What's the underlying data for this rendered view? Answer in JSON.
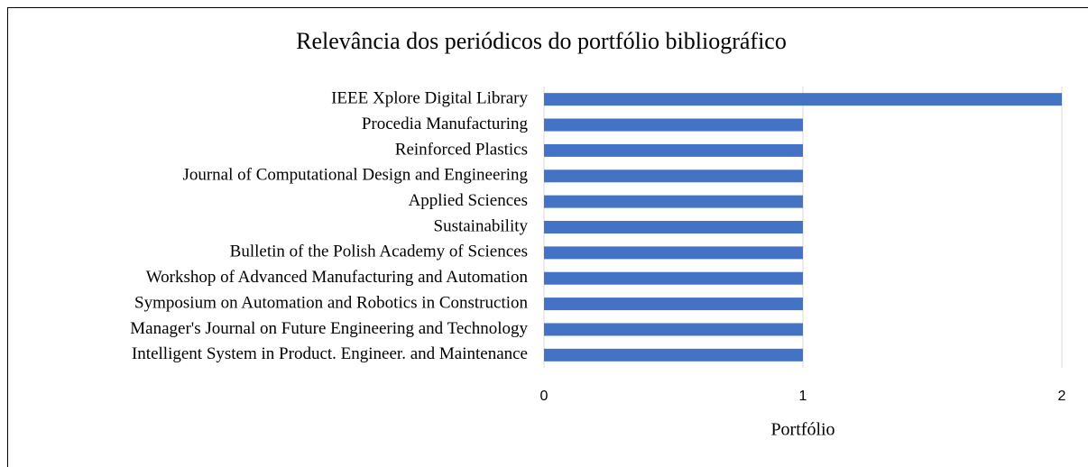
{
  "chart_data": {
    "type": "bar",
    "orientation": "horizontal",
    "title": "Relevância dos periódicos do portfólio bibliográfico",
    "x_label": "Portfólio",
    "categories": [
      "IEEE Xplore Digital Library",
      "Procedia Manufacturing",
      "Reinforced Plastics",
      "Journal of Computational Design and Engineering",
      "Applied Sciences",
      "Sustainability",
      "Bulletin of the Polish Academy of Sciences",
      "Workshop of Advanced Manufacturing and Automation",
      "Symposium on Automation and Robotics in Construction",
      "Manager's Journal on Future Engineering and Technology",
      "Intelligent System in Product. Engineer. and Maintenance"
    ],
    "values": [
      2,
      1,
      1,
      1,
      1,
      1,
      1,
      1,
      1,
      1,
      1
    ],
    "color": "#4472c4",
    "xlim": [
      0,
      2
    ],
    "xticks": [
      0,
      1,
      2
    ],
    "grid": true
  }
}
